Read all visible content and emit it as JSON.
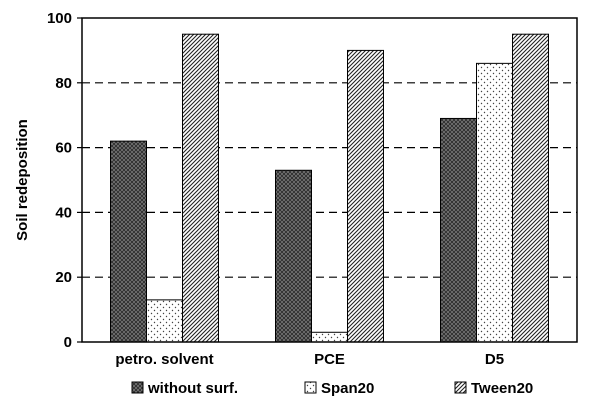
{
  "chart_data": {
    "type": "bar",
    "title": "",
    "xlabel": "",
    "ylabel": "Soil redeposition",
    "ylim": [
      0,
      100
    ],
    "yticks": [
      "0",
      "20",
      "40",
      "60",
      "80",
      "100"
    ],
    "grid": "horizontal-dashed",
    "legend_position": "bottom",
    "categories": [
      "petro. solvent",
      "PCE",
      "D5"
    ],
    "series": [
      {
        "name": "without surf.",
        "pattern": "dark-crosshatch",
        "color": "#333333",
        "values": [
          62,
          53,
          69
        ]
      },
      {
        "name": "Span20",
        "pattern": "sparse-dots",
        "color": "#ffffff",
        "values": [
          13,
          3,
          86
        ]
      },
      {
        "name": "Tween20",
        "pattern": "diagonal-hatch",
        "color": "#ffffff",
        "values": [
          95,
          90,
          95
        ]
      }
    ]
  }
}
